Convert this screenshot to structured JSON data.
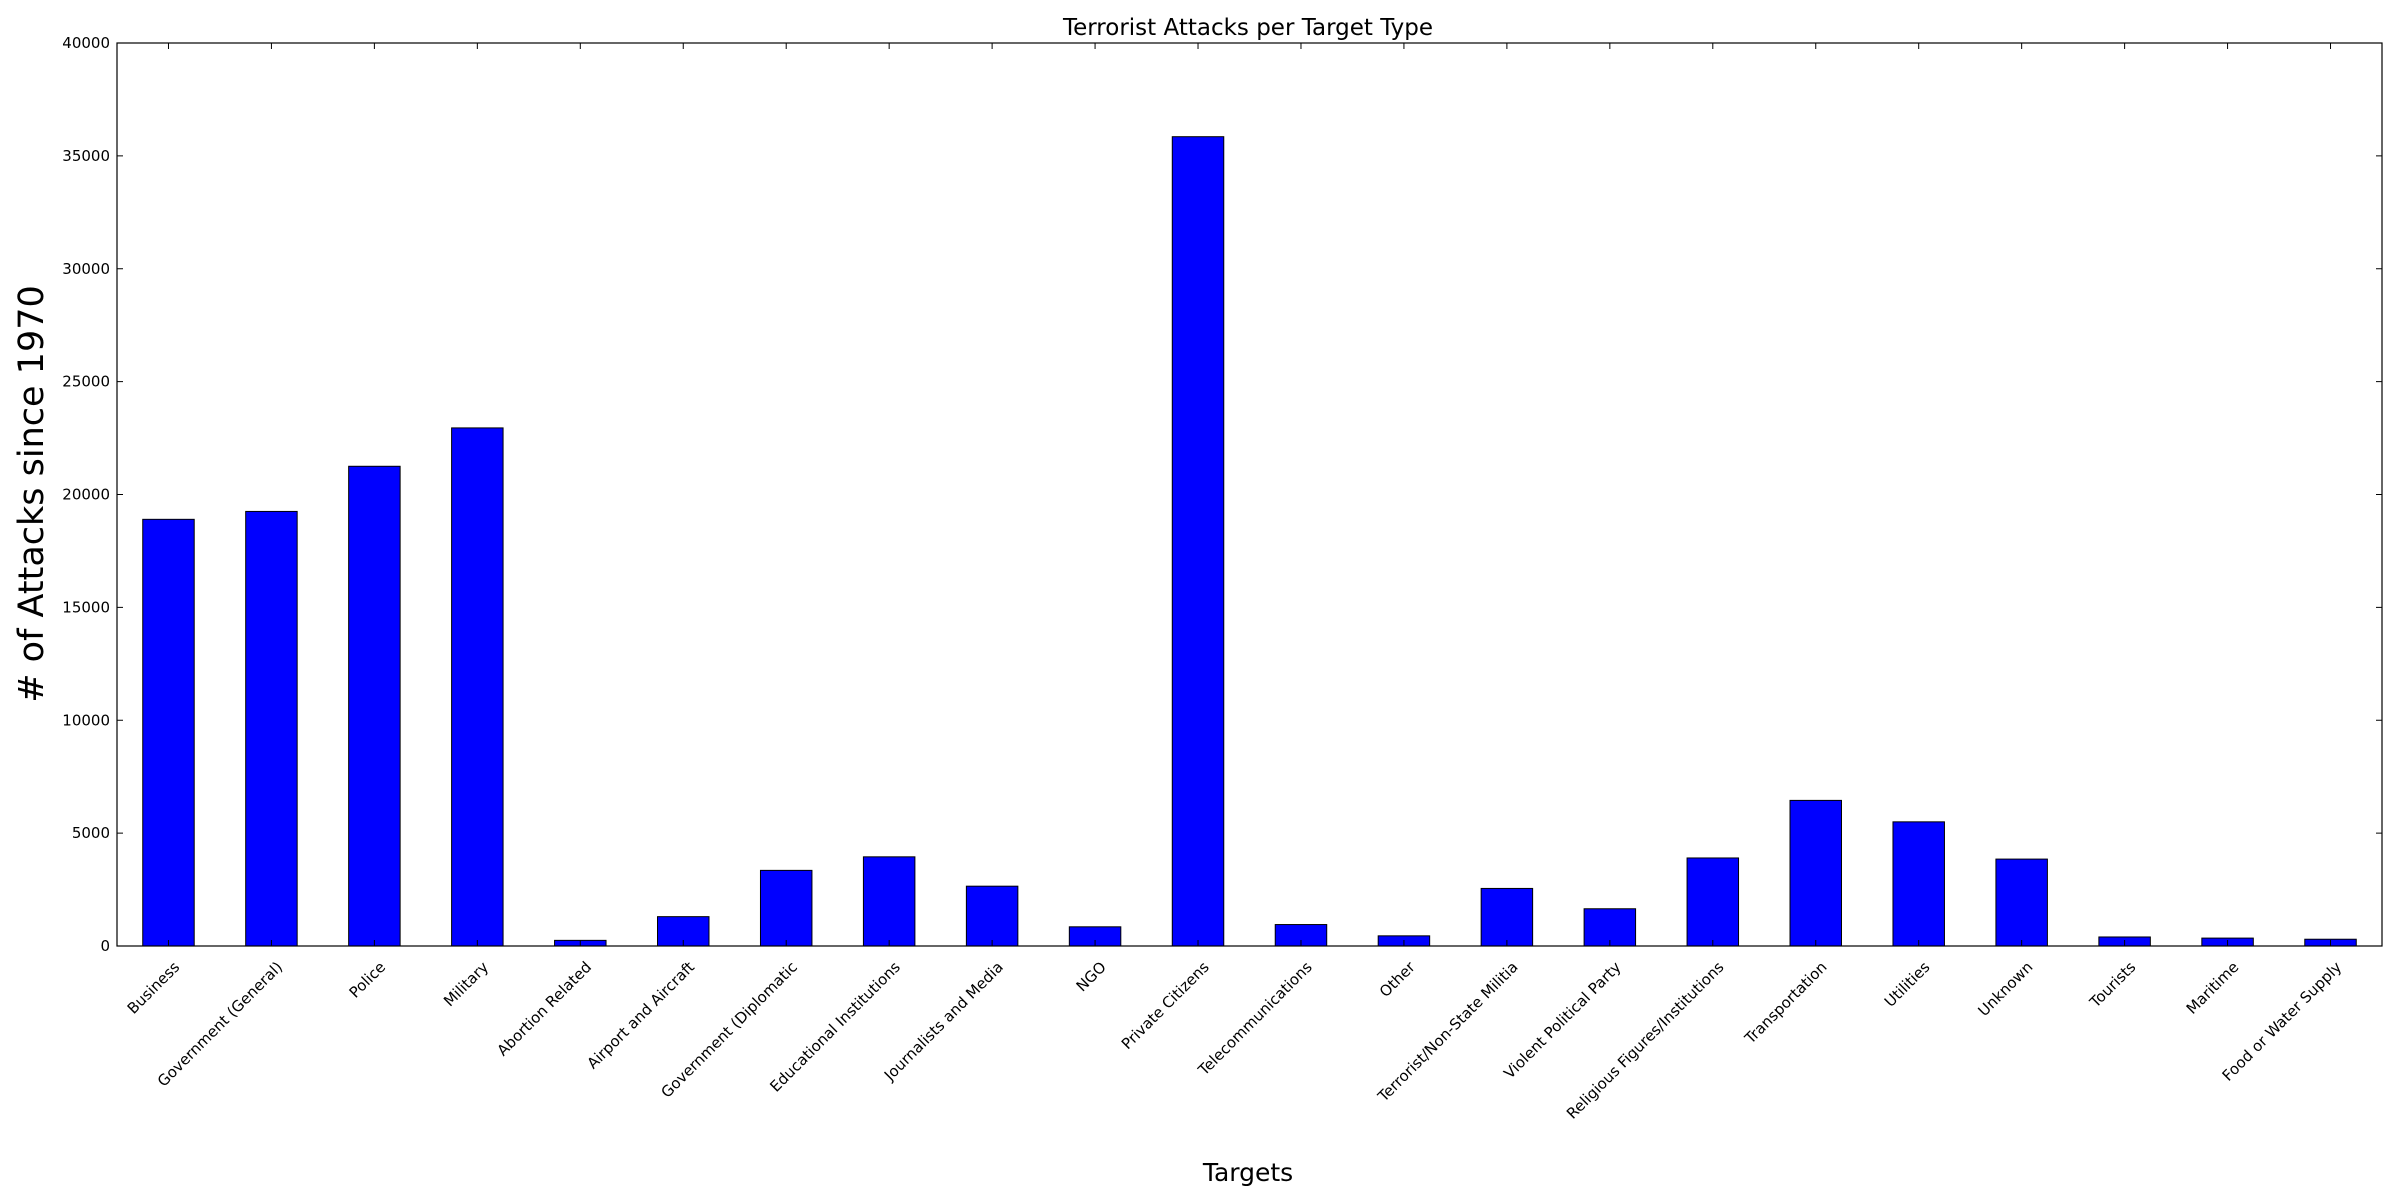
{
  "chart_data": {
    "type": "bar",
    "title": "Terrorist Attacks per Target Type",
    "xlabel": "Targets",
    "ylabel": "# of Attacks since 1970",
    "ylim": [
      0,
      40000
    ],
    "yticks": [
      0,
      5000,
      10000,
      15000,
      20000,
      25000,
      30000,
      35000,
      40000
    ],
    "grid": false,
    "bar_color": "#0000ff",
    "categories": [
      "Business",
      "Government (General)",
      "Police",
      "Military",
      "Abortion Related",
      "Airport and Aircraft",
      "Government (Diplomatic",
      "Educational Institutions",
      "Journalists and Media",
      "NGO",
      "Private Citizens",
      "Telecommunications",
      "Other",
      "Terrorist/Non-State Militia",
      "Violent Political Party",
      "Religious Figures/Institutions",
      "Transportation",
      "Utilities",
      "Unknown",
      "Tourists",
      "Maritime",
      "Food or Water Supply"
    ],
    "values": [
      18900,
      19250,
      21250,
      22950,
      250,
      1300,
      3350,
      3950,
      2650,
      850,
      35850,
      950,
      450,
      2550,
      1650,
      3900,
      6450,
      5500,
      3850,
      400,
      350,
      300
    ]
  }
}
